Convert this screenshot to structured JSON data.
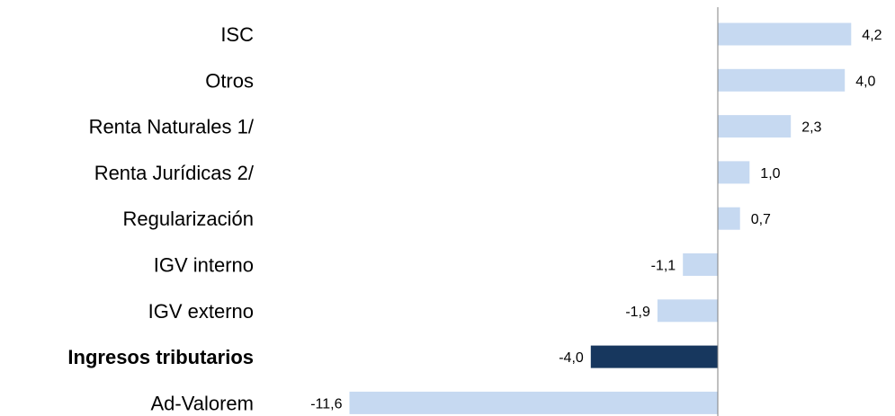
{
  "chart_data": {
    "type": "bar",
    "orientation": "horizontal",
    "categories": [
      "ISC",
      "Otros",
      "Renta Naturales 1/",
      "Renta Jurídicas 2/",
      "Regularización",
      "IGV interno",
      "IGV externo",
      "Ingresos tributarios",
      "Ad-Valorem"
    ],
    "values": [
      4.2,
      4.0,
      2.3,
      1.0,
      0.7,
      -1.1,
      -1.9,
      -4.0,
      -11.6
    ],
    "value_labels": [
      "4,2",
      "4,0",
      "2,3",
      "1,0",
      "0,7",
      "-1,1",
      "-1,9",
      "-4,0",
      "-11,6"
    ],
    "highlight_index": 7,
    "colors": {
      "default": "#c6d9f1",
      "highlight": "#17375e",
      "axis": "#808080"
    },
    "grid": false,
    "legend": "none",
    "title": "",
    "xlabel": "",
    "ylabel": ""
  }
}
